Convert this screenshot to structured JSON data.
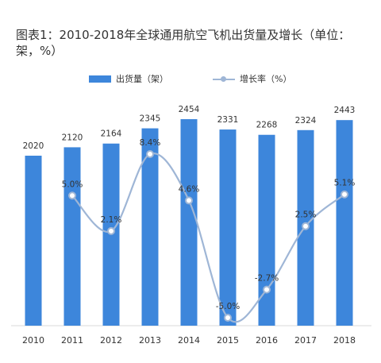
{
  "chart_data": {
    "type": "bar",
    "title": "图表1：2010-2018年全球通用航空飞机出货量及增长（单位：架，%）",
    "categories": [
      "2010",
      "2011",
      "2012",
      "2013",
      "2014",
      "2015",
      "2016",
      "2017",
      "2018"
    ],
    "series": [
      {
        "name": "出货量（架）",
        "type": "bar",
        "values": [
          2020,
          2120,
          2164,
          2345,
          2454,
          2331,
          2268,
          2324,
          2443
        ],
        "labels": [
          "2020",
          "2120",
          "2164",
          "2345",
          "2454",
          "2331",
          "2268",
          "2324",
          "2443"
        ],
        "color": "#3D86DB"
      },
      {
        "name": "增长率（%）",
        "type": "line",
        "values": [
          null,
          5.0,
          2.1,
          8.4,
          4.6,
          -5.0,
          -2.7,
          2.5,
          5.1
        ],
        "labels": [
          "",
          "5.0%",
          "2.1%",
          "8.4%",
          "4.6%",
          "-5.0%",
          "-2.7%",
          "2.5%",
          "5.1%"
        ],
        "color": "#9FB6D6"
      }
    ],
    "legend_position": "top-center",
    "grid": false
  }
}
